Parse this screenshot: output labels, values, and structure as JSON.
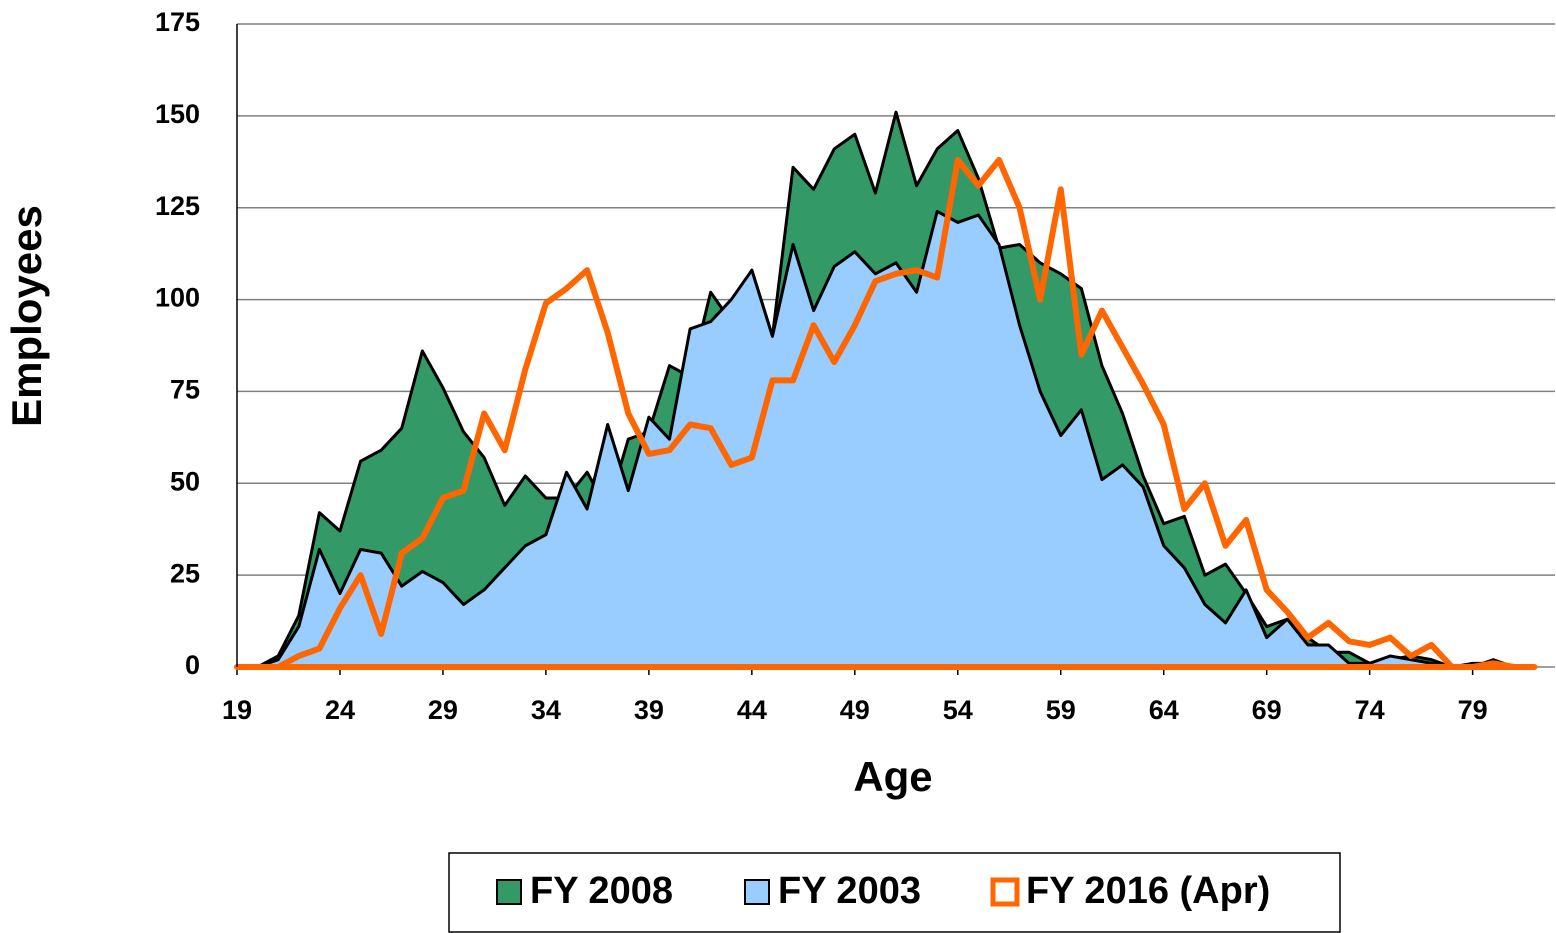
{
  "chart_data": {
    "type": "area",
    "x_label": "Age",
    "y_label": "Employees",
    "x": [
      19,
      20,
      21,
      22,
      23,
      24,
      25,
      26,
      27,
      28,
      29,
      30,
      31,
      32,
      33,
      34,
      35,
      36,
      37,
      38,
      39,
      40,
      41,
      42,
      43,
      44,
      45,
      46,
      47,
      48,
      49,
      50,
      51,
      52,
      53,
      54,
      55,
      56,
      57,
      58,
      59,
      60,
      61,
      62,
      63,
      64,
      65,
      66,
      67,
      68,
      69,
      70,
      71,
      72,
      73,
      74,
      75,
      76,
      77,
      78,
      79,
      80,
      81,
      82
    ],
    "series": [
      {
        "name": "FY 2008",
        "color": "#339966",
        "fill": true,
        "values": [
          0,
          0,
          3,
          14,
          42,
          37,
          56,
          59,
          65,
          86,
          76,
          64,
          57,
          44,
          52,
          46,
          46,
          53,
          43,
          62,
          64,
          82,
          79,
          102,
          94,
          108,
          90,
          136,
          130,
          141,
          145,
          129,
          151,
          131,
          141,
          146,
          133,
          114,
          115,
          110,
          107,
          103,
          82,
          69,
          52,
          39,
          41,
          25,
          28,
          20,
          11,
          13,
          8,
          4,
          4,
          1,
          2,
          3,
          2,
          0,
          1,
          1,
          0,
          0
        ]
      },
      {
        "name": "FY 2003",
        "color": "#99ccff",
        "fill": true,
        "values": [
          0,
          0,
          2,
          11,
          32,
          20,
          32,
          31,
          22,
          26,
          23,
          17,
          21,
          27,
          33,
          36,
          53,
          43,
          66,
          48,
          68,
          62,
          92,
          94,
          100,
          108,
          90,
          115,
          97,
          109,
          113,
          107,
          110,
          102,
          124,
          121,
          123,
          115,
          93,
          75,
          63,
          70,
          51,
          55,
          49,
          33,
          27,
          17,
          12,
          21,
          8,
          13,
          6,
          6,
          1,
          1,
          3,
          2,
          1,
          0,
          0,
          2,
          0,
          0
        ]
      },
      {
        "name": "FY 2016 (Apr)",
        "color": "#ff6600",
        "fill": false,
        "values": [
          0,
          0,
          0,
          3,
          5,
          16,
          25,
          9,
          31,
          35,
          46,
          48,
          69,
          59,
          81,
          99,
          103,
          108,
          91,
          69,
          58,
          59,
          66,
          65,
          55,
          57,
          78,
          78,
          93,
          83,
          93,
          105,
          107,
          108,
          106,
          138,
          131,
          138,
          125,
          100,
          130,
          85,
          97,
          87,
          77,
          66,
          43,
          50,
          33,
          40,
          21,
          15,
          8,
          12,
          7,
          6,
          8,
          3,
          6,
          0,
          0,
          1,
          0,
          0
        ]
      }
    ],
    "xlim": [
      19,
      83
    ],
    "xticks": [
      19,
      24,
      29,
      34,
      39,
      44,
      49,
      54,
      59,
      64,
      69,
      74,
      79
    ],
    "ylim": [
      0,
      175
    ],
    "yticks": [
      0,
      25,
      50,
      75,
      100,
      125,
      150,
      175
    ],
    "grid": true,
    "legend": "bottom"
  }
}
